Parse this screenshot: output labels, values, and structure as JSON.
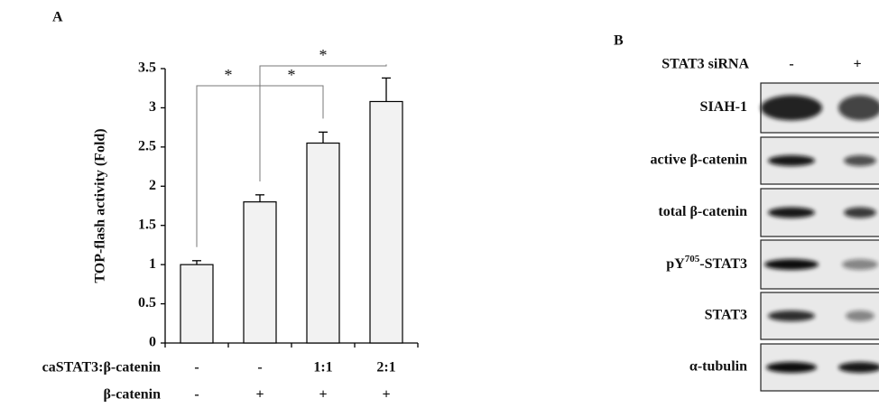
{
  "chart_data": {
    "type": "bar",
    "panel_label": "A",
    "ylabel": "TOP-flash activity (Fold)",
    "values": [
      1,
      1.8,
      2.55,
      3.08
    ],
    "errors": [
      0.05,
      0.09,
      0.14,
      0.3
    ],
    "color": "#f2f2f2",
    "ylim": [
      0,
      3.5
    ],
    "yticks": [
      0,
      0.5,
      1,
      1.5,
      2,
      2.5,
      3,
      3.5
    ],
    "conditions": [
      {
        "name": "caSTAT3:β-catenin",
        "values": [
          "-",
          "-",
          "1:1",
          "2:1"
        ]
      },
      {
        "name": "β-catenin",
        "values": [
          "-",
          "+",
          "+",
          "+"
        ]
      }
    ],
    "significance": [
      {
        "pair": [
          0,
          1
        ],
        "label": "*"
      },
      {
        "pair": [
          1,
          2
        ],
        "label": "*"
      },
      {
        "pair": [
          1,
          3
        ],
        "label": "*"
      }
    ]
  },
  "blot": {
    "panel_label": "B",
    "treatment": "STAT3 siRNA",
    "lanes": [
      "-",
      "+"
    ],
    "bands": [
      "SIAH-1",
      "active β-catenin",
      "total β-catenin",
      {
        "base": "pY",
        "sup": "705",
        "rest": "-STAT3"
      },
      "STAT3",
      "α-tubulin"
    ]
  }
}
